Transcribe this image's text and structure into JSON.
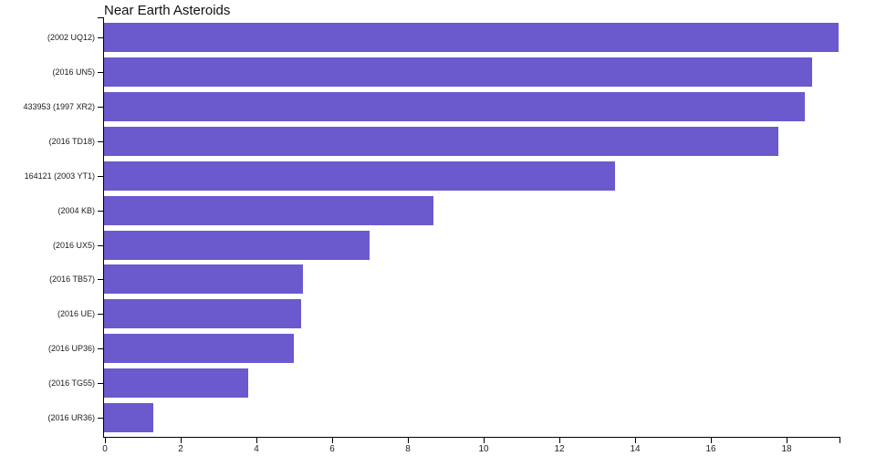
{
  "chart_data": {
    "type": "bar",
    "orientation": "horizontal",
    "title": "Near Earth Asteroids",
    "categories": [
      "(2002 UQ12)",
      "(2016 UN5)",
      "433953 (1997 XR2)",
      "(2016 TD18)",
      "164121 (2003 YT1)",
      "(2004 KB)",
      "(2016 UX5)",
      "(2016 TB57)",
      "(2016 UE)",
      "(2016 UP36)",
      "(2016 TG55)",
      "(2016 UR36)"
    ],
    "values": [
      19.4,
      18.7,
      18.5,
      17.8,
      13.5,
      8.7,
      7.0,
      5.25,
      5.2,
      5.0,
      3.8,
      1.3
    ],
    "xlabel": "",
    "ylabel": "",
    "xlim": [
      0,
      19.42
    ],
    "xticks": [
      0,
      2,
      4,
      6,
      8,
      10,
      12,
      14,
      16,
      18
    ],
    "bar_color": "#6a5acd",
    "axis_color": "#000000",
    "label_color": "#1a1a1a",
    "grid": false,
    "legend": false
  }
}
